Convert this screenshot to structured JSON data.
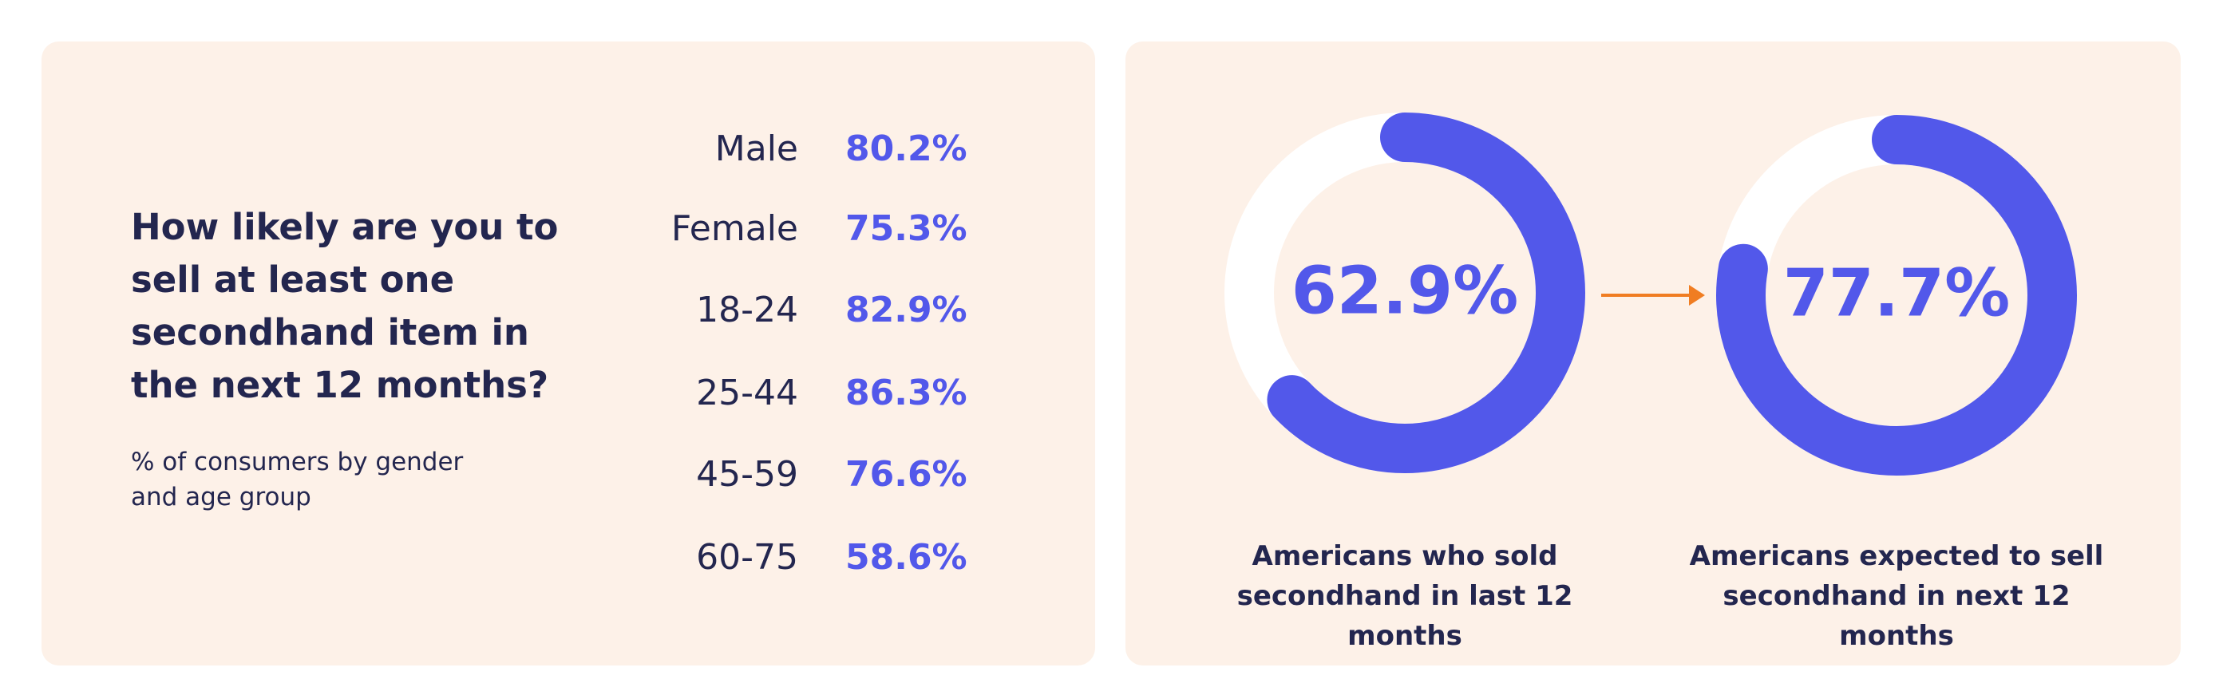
{
  "question": {
    "title": "How likely are you to sell at least one secondhand item in the next 12 months?",
    "subtitle": "% of consumers by gender and age group"
  },
  "chart_data": [
    {
      "type": "table",
      "title": "How likely are you to sell at least one secondhand item in the next 12 months?",
      "subtitle": "% of consumers by gender and age group",
      "rows": [
        {
          "label": "Male",
          "value": 80.2,
          "display": "80.2%"
        },
        {
          "label": "Female",
          "value": 75.3,
          "display": "75.3%"
        },
        {
          "label": "18-24",
          "value": 82.9,
          "display": "82.9%"
        },
        {
          "label": "25-44",
          "value": 86.3,
          "display": "86.3%"
        },
        {
          "label": "45-59",
          "value": 76.6,
          "display": "76.6%"
        },
        {
          "label": "60-75",
          "value": 58.6,
          "display": "58.6%"
        }
      ]
    },
    {
      "type": "pie",
      "style": "donut-progress",
      "value": 62.9,
      "display": "62.9%",
      "caption": "Americans who sold secondhand in last 12 months"
    },
    {
      "type": "pie",
      "style": "donut-progress",
      "value": 77.7,
      "display": "77.7%",
      "caption": "Americans expected to sell secondhand in next 12 months"
    }
  ],
  "colors": {
    "accent": "#5258ea",
    "arrow": "#f07d22",
    "panel_background": "#fdf1e8",
    "ring_track": "#ffffff",
    "text": "#23264f"
  },
  "icons": {
    "arrow": "arrow-right-icon"
  }
}
